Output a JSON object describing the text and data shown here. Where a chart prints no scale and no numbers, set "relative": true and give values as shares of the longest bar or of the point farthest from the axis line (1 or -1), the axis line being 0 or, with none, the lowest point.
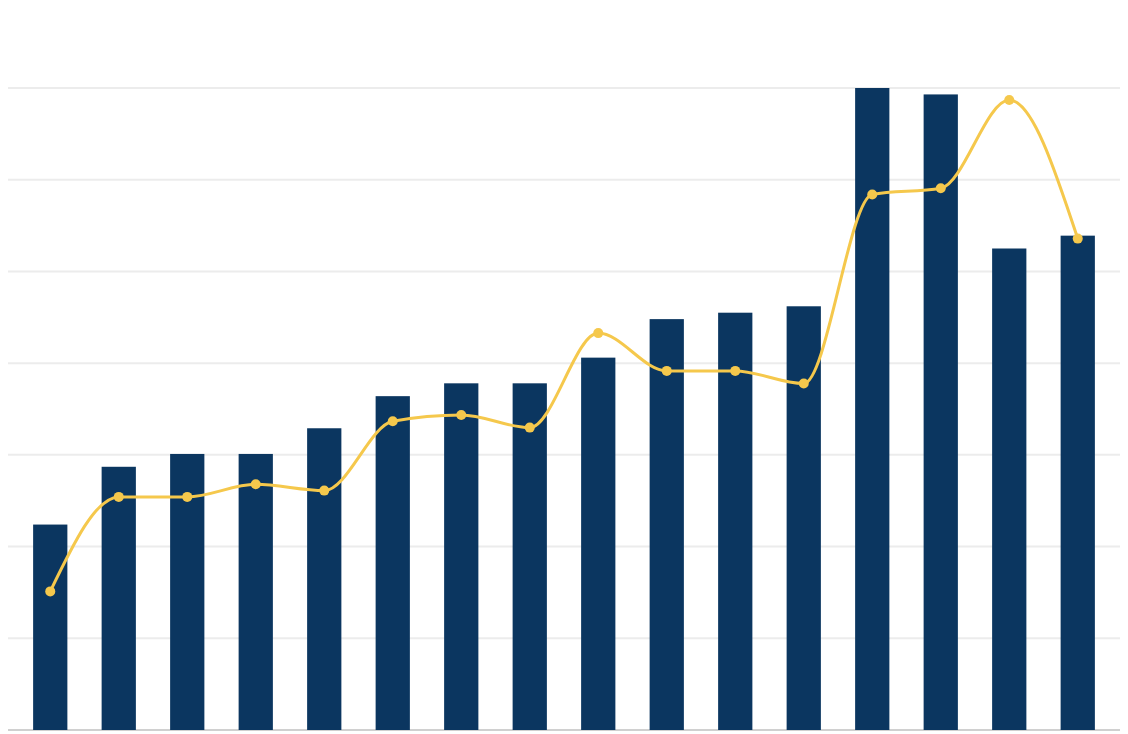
{
  "chart_data": [
    {
      "type": "bar",
      "relative": true,
      "grid": true,
      "categories": [
        null,
        null,
        null,
        null,
        null,
        null,
        null,
        null,
        null,
        null,
        null,
        null,
        null,
        null,
        null,
        null
      ],
      "series": [
        {
          "color": "#0b3660",
          "values": [
            0.32,
            0.41,
            0.43,
            0.43,
            0.47,
            0.52,
            0.54,
            0.54,
            0.58,
            0.64,
            0.65,
            0.66,
            1,
            0.99,
            0.75,
            0.77
          ]
        }
      ]
    },
    {
      "type": "line",
      "relative": true,
      "marker": "circle",
      "categories": [
        null,
        null,
        null,
        null,
        null,
        null,
        null,
        null,
        null,
        null,
        null,
        null,
        null,
        null,
        null,
        null
      ],
      "series": [
        {
          "color": "#f5c84c",
          "values": [
            0.22,
            0.37,
            0.37,
            0.39,
            0.38,
            0.49,
            0.5,
            0.48,
            0.63,
            0.57,
            0.57,
            0.55,
            0.85,
            0.86,
            1,
            0.78
          ]
        }
      ]
    }
  ]
}
